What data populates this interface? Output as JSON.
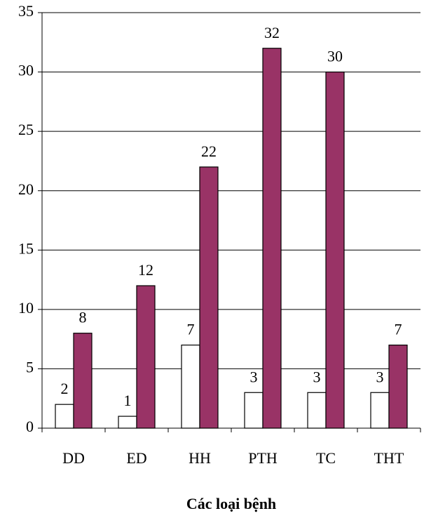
{
  "chart_data": {
    "type": "bar",
    "x_label": "Các loại bệnh",
    "categories": [
      "DD",
      "ED",
      "HH",
      "PTH",
      "TC",
      "THT"
    ],
    "series": [
      {
        "color": "#ffffff",
        "values": [
          2,
          1,
          7,
          3,
          3,
          3
        ]
      },
      {
        "color": "#993366",
        "values": [
          8,
          12,
          22,
          32,
          30,
          7
        ]
      }
    ],
    "ylim": [
      0,
      35
    ],
    "yticks": [
      0,
      5,
      10,
      15,
      20,
      25,
      30,
      35
    ],
    "grid": true
  }
}
